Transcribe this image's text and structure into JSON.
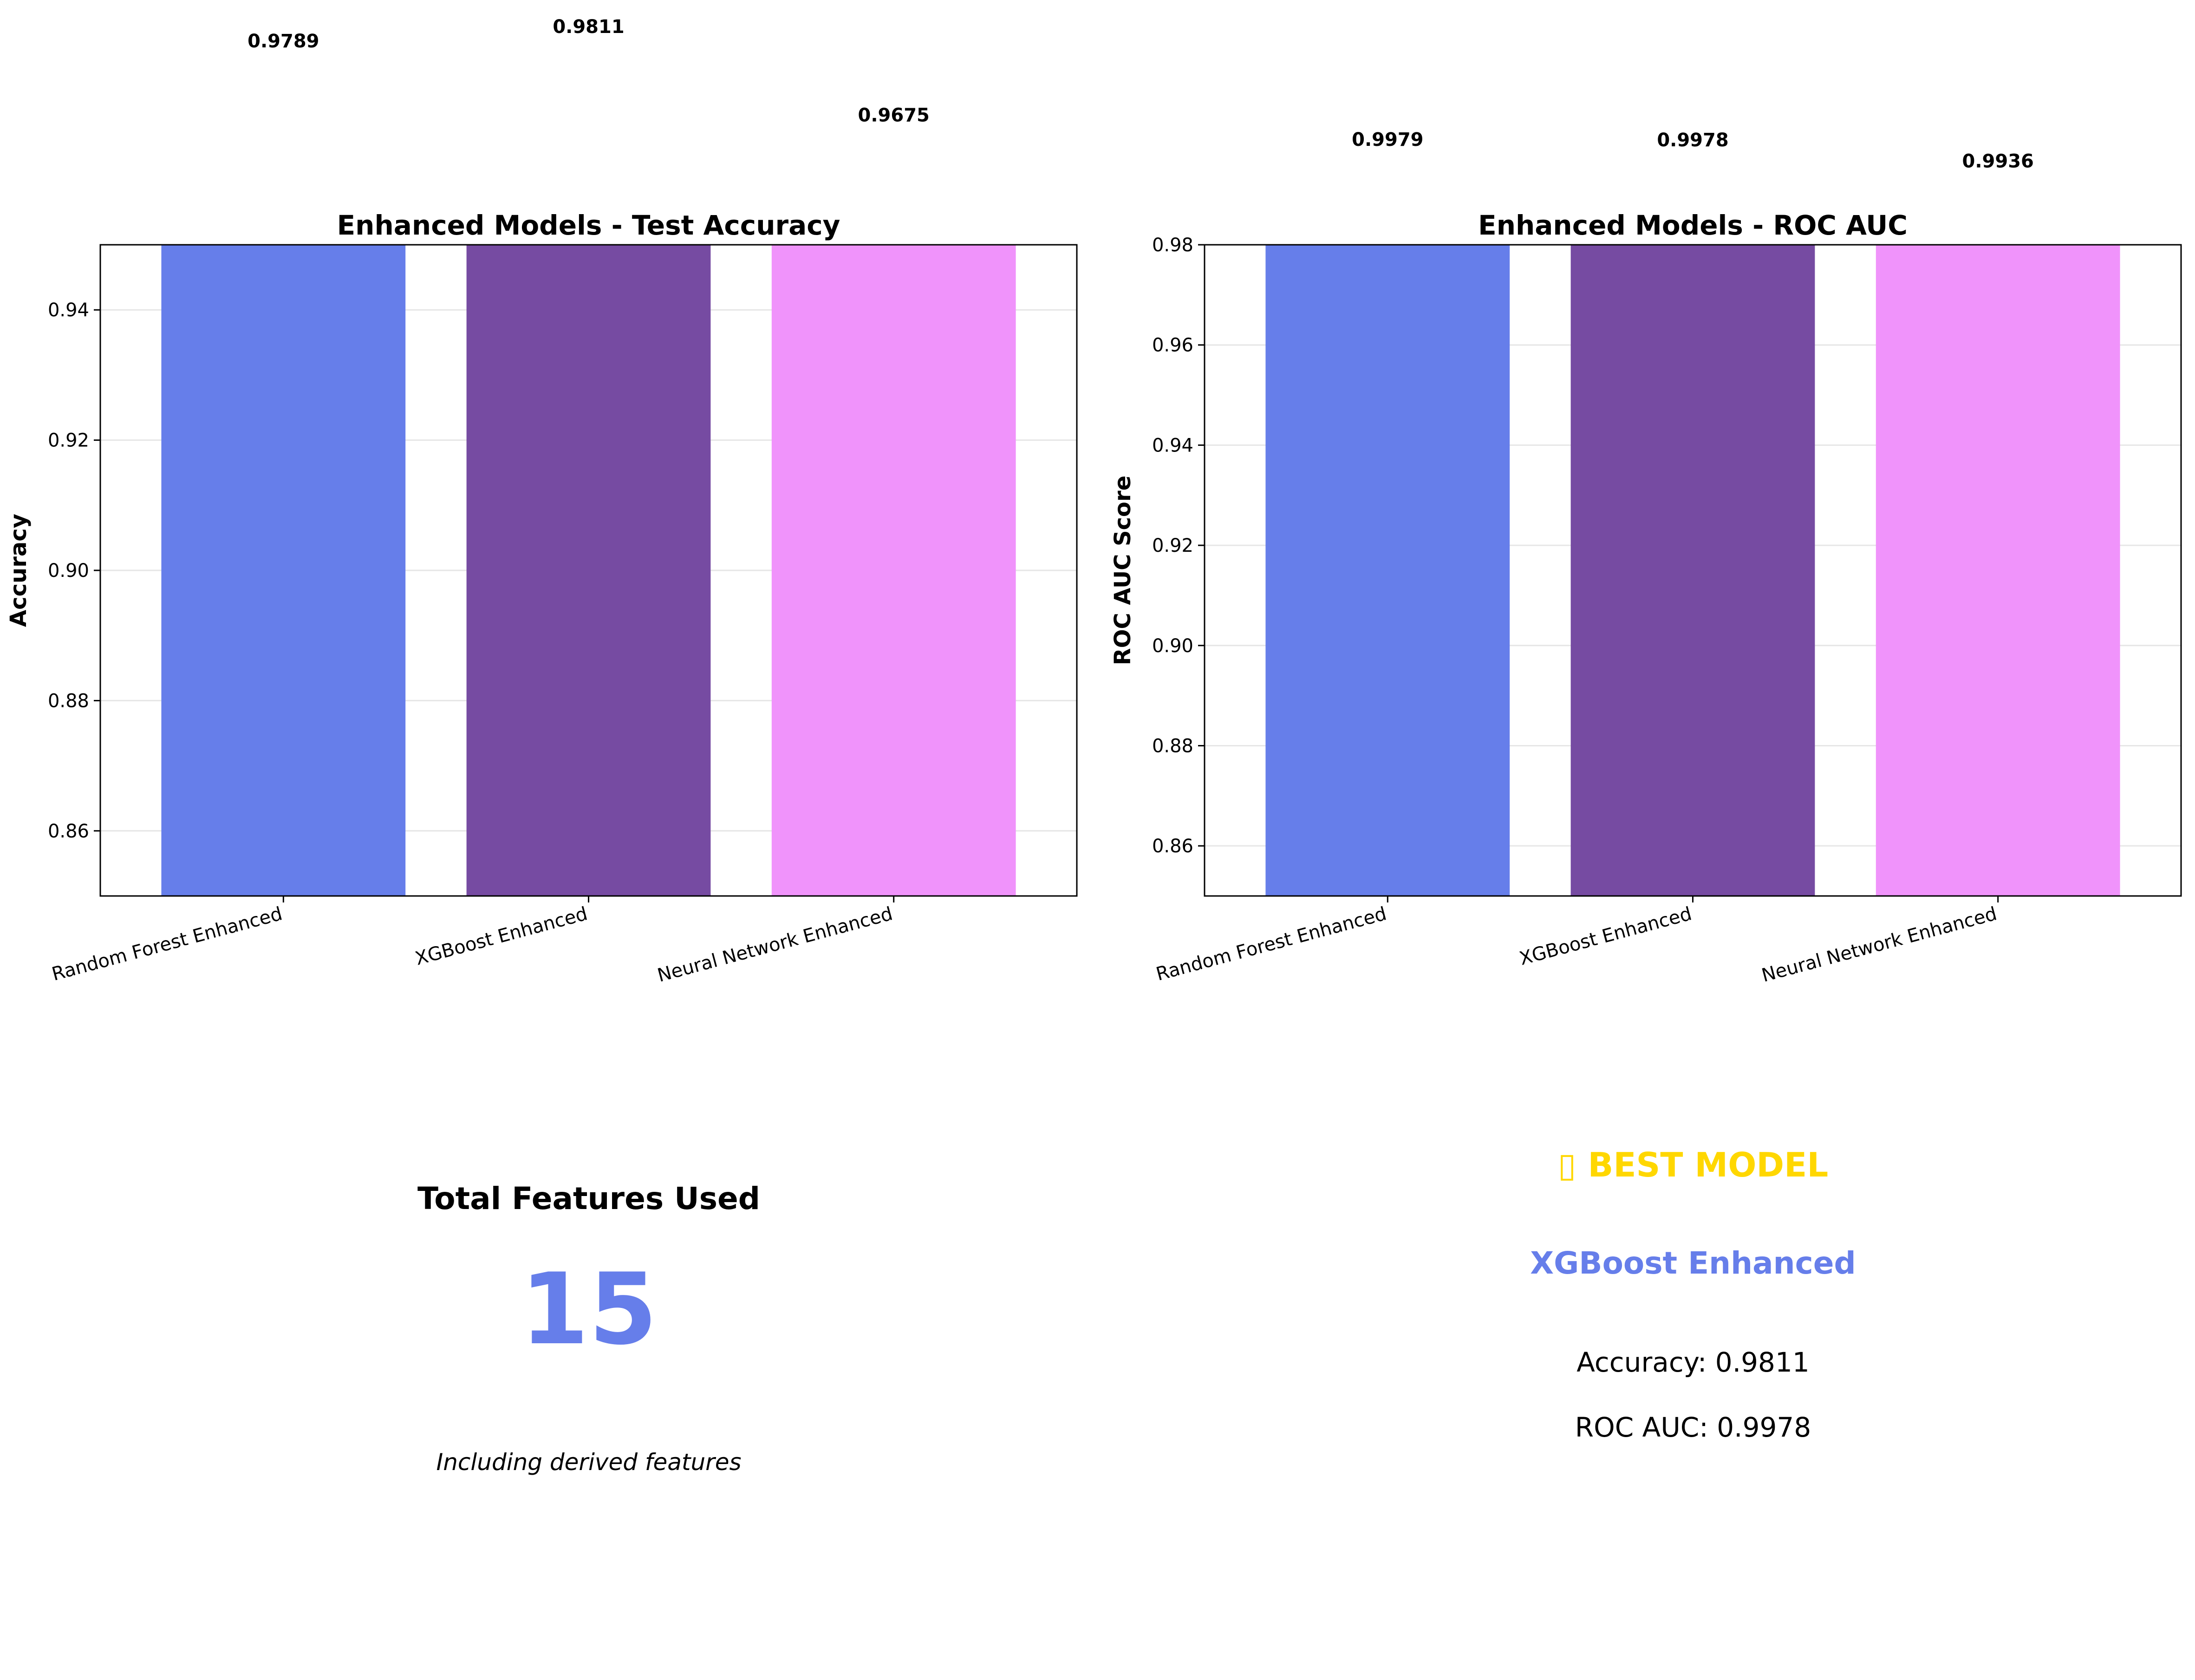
{
  "colors": {
    "bars": [
      "#667eea",
      "#764ba2",
      "#f093fb"
    ],
    "grid": "#e6e6e6",
    "best_title": "#ffd700",
    "best_model": "#667eea",
    "feature_count": "#667eea",
    "text": "#000000"
  },
  "chart_data": [
    {
      "type": "bar",
      "title": "Enhanced Models - Test Accuracy",
      "xlabel": "",
      "ylabel": "Accuracy",
      "categories": [
        "Random Forest Enhanced",
        "XGBoost Enhanced",
        "Neural Network Enhanced"
      ],
      "values": [
        0.9789,
        0.9811,
        0.9675
      ],
      "value_labels": [
        "0.9789",
        "0.9811",
        "0.9675"
      ],
      "ylim": [
        0.85,
        0.95
      ],
      "yticks": [
        0.86,
        0.88,
        0.9,
        0.92,
        0.94
      ],
      "ytick_labels": [
        "0.86",
        "0.88",
        "0.90",
        "0.92",
        "0.94"
      ],
      "grid": true
    },
    {
      "type": "bar",
      "title": "Enhanced Models - ROC AUC",
      "xlabel": "",
      "ylabel": "ROC AUC Score",
      "categories": [
        "Random Forest Enhanced",
        "XGBoost Enhanced",
        "Neural Network Enhanced"
      ],
      "values": [
        0.9979,
        0.9978,
        0.9936
      ],
      "value_labels": [
        "0.9979",
        "0.9978",
        "0.9936"
      ],
      "ylim": [
        0.85,
        0.98
      ],
      "yticks": [
        0.86,
        0.88,
        0.9,
        0.92,
        0.94,
        0.96,
        0.98
      ],
      "ytick_labels": [
        "0.86",
        "0.88",
        "0.90",
        "0.92",
        "0.94",
        "0.96",
        "0.98"
      ],
      "grid": true
    }
  ],
  "features_panel": {
    "title": "Total Features Used",
    "count": "15",
    "note": "Including derived features"
  },
  "best_panel": {
    "title": "▯ BEST MODEL",
    "model": "XGBoost Enhanced",
    "accuracy": "Accuracy: 0.9811",
    "roc_auc": "ROC AUC: 0.9978"
  }
}
